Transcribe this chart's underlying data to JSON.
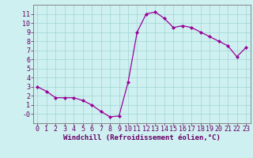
{
  "x": [
    0,
    1,
    2,
    3,
    4,
    5,
    6,
    7,
    8,
    9,
    10,
    11,
    12,
    13,
    14,
    15,
    16,
    17,
    18,
    19,
    20,
    21,
    22,
    23
  ],
  "y": [
    3.0,
    2.5,
    1.8,
    1.8,
    1.8,
    1.5,
    1.0,
    0.3,
    -0.3,
    -0.2,
    3.5,
    9.0,
    11.0,
    11.2,
    10.5,
    9.5,
    9.7,
    9.5,
    9.0,
    8.5,
    8.0,
    7.5,
    6.3,
    7.3
  ],
  "line_color": "#990099",
  "marker": "D",
  "marker_size": 2.0,
  "bg_color": "#cff0f0",
  "grid_color": "#a8d8d8",
  "xlabel": "Windchill (Refroidissement éolien,°C)",
  "xlim": [
    -0.5,
    23.5
  ],
  "ylim": [
    -1.0,
    12.0
  ],
  "xticks": [
    0,
    1,
    2,
    3,
    4,
    5,
    6,
    7,
    8,
    9,
    10,
    11,
    12,
    13,
    14,
    15,
    16,
    17,
    18,
    19,
    20,
    21,
    22,
    23
  ],
  "yticks": [
    0,
    1,
    2,
    3,
    4,
    5,
    6,
    7,
    8,
    9,
    10,
    11
  ],
  "ytick_labels": [
    "-0",
    "1",
    "2",
    "3",
    "4",
    "5",
    "6",
    "7",
    "8",
    "9",
    "10",
    "11"
  ],
  "xlabel_fontsize": 6.5,
  "tick_fontsize": 6.0,
  "label_color": "#660066"
}
